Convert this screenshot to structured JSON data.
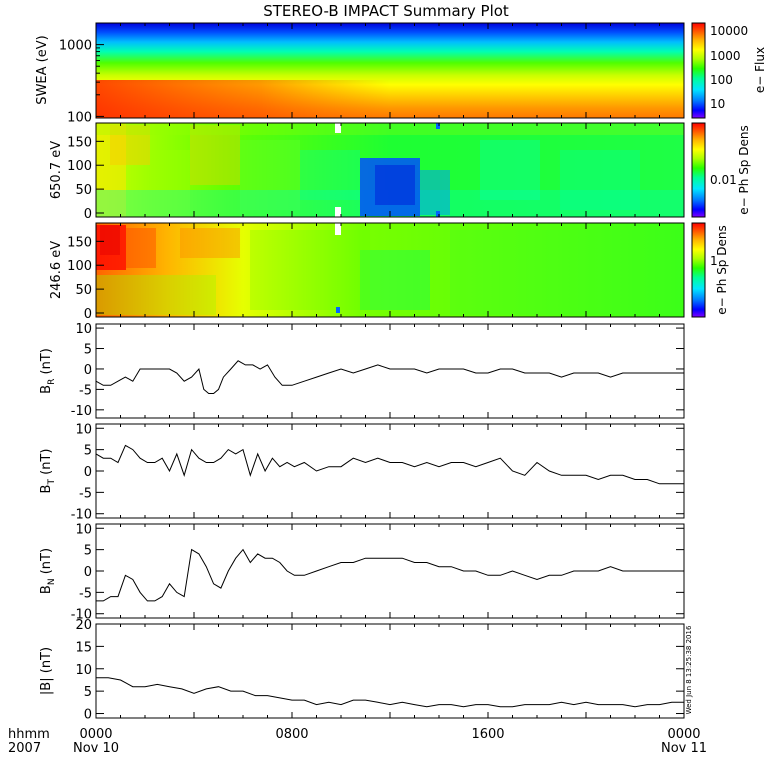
{
  "title": "STEREO-B IMPACT Summary Plot",
  "timestamp": "Wed Jun 8 13:25:38 2016",
  "x_axis": {
    "corner_top": "hhmm",
    "corner_bottom": "2007",
    "ticks": [
      {
        "label": "0000",
        "date": "Nov 10",
        "hour": 0
      },
      {
        "label": "0800",
        "date": "",
        "hour": 8
      },
      {
        "label": "1600",
        "date": "",
        "hour": 16
      },
      {
        "label": "0000",
        "date": "Nov 11",
        "hour": 24
      }
    ],
    "range_hours": [
      0,
      24
    ]
  },
  "colors": {
    "colorscale": [
      "#7f00ff",
      "#0000ff",
      "#0050ff",
      "#00b4ff",
      "#00ffc8",
      "#00ff64",
      "#46ff00",
      "#aaff00",
      "#ffff00",
      "#ffc800",
      "#ff8c00",
      "#ff4600",
      "#ff0000"
    ],
    "line": "#000000"
  },
  "chart_data": [
    {
      "type": "heatmap",
      "panel": "swea",
      "ylabel": "SWEA (eV)",
      "ylim": [
        95,
        2000
      ],
      "log_y": true,
      "yticks": [
        {
          "label": "1000",
          "value": 1000
        },
        {
          "label": "100",
          "value": 100
        }
      ],
      "colorbar_label": "e− Flux",
      "colorbar_ticks": [
        "10000",
        "1000",
        "100",
        "10"
      ],
      "description_bands_eV": [
        1800,
        1000,
        400,
        150
      ]
    },
    {
      "type": "heatmap",
      "panel": "pad_650",
      "ylabel": "650.7 eV",
      "ylim": [
        0,
        180
      ],
      "yticks": [
        {
          "label": "150",
          "value": 150
        },
        {
          "label": "100",
          "value": 100
        },
        {
          "label": "50",
          "value": 50
        },
        {
          "label": "0",
          "value": 0
        }
      ],
      "colorbar_label": "e− Ph Sp Dens",
      "colorbar_ticks": [
        "0.01"
      ]
    },
    {
      "type": "heatmap",
      "panel": "pad_246",
      "ylabel": "246.6 eV",
      "ylim": [
        0,
        180
      ],
      "yticks": [
        {
          "label": "150",
          "value": 150
        },
        {
          "label": "100",
          "value": 100
        },
        {
          "label": "50",
          "value": 50
        },
        {
          "label": "0",
          "value": 0
        }
      ],
      "colorbar_label": "e− Ph Sp Dens",
      "colorbar_ticks": [
        "1"
      ]
    },
    {
      "type": "line",
      "panel": "br",
      "ylabel_main": "B",
      "ylabel_sub": "R",
      "ylabel_unit": "(nT)",
      "ylim": [
        -12,
        11
      ],
      "yticks": [
        10,
        5,
        0,
        -5,
        -10
      ],
      "x": [
        0,
        0.3,
        0.6,
        0.9,
        1.2,
        1.5,
        1.8,
        2.1,
        2.4,
        2.7,
        3.0,
        3.3,
        3.6,
        3.9,
        4.2,
        4.4,
        4.6,
        4.8,
        5.0,
        5.2,
        5.5,
        5.8,
        6.1,
        6.4,
        6.7,
        7.0,
        7.3,
        7.6,
        7.8,
        8.0,
        8.5,
        9.0,
        9.5,
        10.0,
        10.5,
        11.0,
        11.5,
        12.0,
        12.5,
        13.0,
        13.5,
        14.0,
        14.5,
        15.0,
        15.5,
        16.0,
        16.5,
        17.0,
        17.5,
        18.0,
        18.5,
        19.0,
        19.5,
        20.0,
        20.5,
        21.0,
        21.5,
        22.0,
        22.5,
        23.0,
        23.5,
        24.0
      ],
      "y": [
        -3,
        -4,
        -4,
        -3,
        -2,
        -3,
        0,
        0,
        0,
        0,
        0,
        -1,
        -3,
        -2,
        0,
        -5,
        -6,
        -6,
        -5,
        -2,
        0,
        2,
        1,
        1,
        0,
        1,
        -2,
        -4,
        -4,
        -4,
        -3,
        -2,
        -1,
        0,
        -1,
        0,
        1,
        0,
        0,
        0,
        -1,
        0,
        0,
        0,
        -1,
        -1,
        0,
        0,
        -1,
        -1,
        -1,
        -2,
        -1,
        -1,
        -1,
        -2,
        -1,
        -1,
        -1,
        -1,
        -1,
        -1
      ]
    },
    {
      "type": "line",
      "panel": "bt",
      "ylabel_main": "B",
      "ylabel_sub": "T",
      "ylabel_unit": "(nT)",
      "ylim": [
        -11,
        11
      ],
      "yticks": [
        10,
        5,
        0,
        -5,
        -10
      ],
      "x": [
        0,
        0.3,
        0.6,
        0.9,
        1.2,
        1.5,
        1.8,
        2.1,
        2.4,
        2.7,
        3.0,
        3.3,
        3.6,
        3.9,
        4.2,
        4.5,
        4.8,
        5.1,
        5.4,
        5.7,
        6.0,
        6.3,
        6.6,
        6.9,
        7.2,
        7.5,
        7.8,
        8.1,
        8.5,
        9.0,
        9.5,
        10.0,
        10.5,
        11.0,
        11.5,
        12.0,
        12.5,
        13.0,
        13.5,
        14.0,
        14.5,
        15.0,
        15.5,
        16.0,
        16.5,
        17.0,
        17.5,
        18.0,
        18.5,
        19.0,
        19.5,
        20.0,
        20.5,
        21.0,
        21.5,
        22.0,
        22.5,
        23.0,
        23.5,
        24.0
      ],
      "y": [
        4,
        3,
        3,
        2,
        6,
        5,
        3,
        2,
        2,
        3,
        0,
        4,
        -1,
        5,
        3,
        2,
        2,
        3,
        5,
        4,
        5,
        -1,
        4,
        0,
        3,
        1,
        2,
        1,
        2,
        0,
        1,
        1,
        3,
        2,
        3,
        2,
        2,
        1,
        2,
        1,
        2,
        2,
        1,
        2,
        3,
        0,
        -1,
        2,
        0,
        -1,
        -1,
        -1,
        -2,
        -1,
        -1,
        -2,
        -2,
        -3,
        -3,
        -3
      ]
    },
    {
      "type": "line",
      "panel": "bn",
      "ylabel_main": "B",
      "ylabel_sub": "N",
      "ylabel_unit": "(nT)",
      "ylim": [
        -11,
        11
      ],
      "yticks": [
        10,
        5,
        0,
        -5,
        -10
      ],
      "x": [
        0,
        0.3,
        0.6,
        0.9,
        1.2,
        1.5,
        1.8,
        2.1,
        2.4,
        2.7,
        3.0,
        3.3,
        3.6,
        3.9,
        4.2,
        4.5,
        4.8,
        5.1,
        5.4,
        5.7,
        6.0,
        6.3,
        6.6,
        6.9,
        7.2,
        7.5,
        7.8,
        8.1,
        8.5,
        9.0,
        9.5,
        10.0,
        10.5,
        11.0,
        11.5,
        12.0,
        12.5,
        13.0,
        13.5,
        14.0,
        14.5,
        15.0,
        15.5,
        16.0,
        16.5,
        17.0,
        17.5,
        18.0,
        18.5,
        19.0,
        19.5,
        20.0,
        20.5,
        21.0,
        21.5,
        22.0,
        22.5,
        23.0,
        23.5,
        24.0
      ],
      "y": [
        -7,
        -7,
        -6,
        -6,
        -1,
        -2,
        -5,
        -7,
        -7,
        -6,
        -3,
        -5,
        -6,
        5,
        4,
        1,
        -3,
        -4,
        0,
        3,
        5,
        2,
        4,
        3,
        3,
        2,
        0,
        -1,
        -1,
        0,
        1,
        2,
        2,
        3,
        3,
        3,
        3,
        2,
        2,
        1,
        1,
        0,
        0,
        -1,
        -1,
        0,
        -1,
        -2,
        -1,
        -1,
        0,
        0,
        0,
        1,
        0,
        0,
        0,
        0,
        0,
        0
      ]
    },
    {
      "type": "line",
      "panel": "bmag",
      "ylabel_main": "|B|",
      "ylabel_sub": "",
      "ylabel_unit": "(nT)",
      "ylim": [
        -1,
        20
      ],
      "yticks": [
        20,
        15,
        10,
        5,
        0
      ],
      "x": [
        0,
        0.5,
        1.0,
        1.5,
        2.0,
        2.5,
        3.0,
        3.5,
        4.0,
        4.5,
        5.0,
        5.5,
        6.0,
        6.5,
        7.0,
        7.5,
        8.0,
        8.5,
        9.0,
        9.5,
        10.0,
        10.5,
        11.0,
        11.5,
        12.0,
        12.5,
        13.0,
        13.5,
        14.0,
        14.5,
        15.0,
        15.5,
        16.0,
        16.5,
        17.0,
        17.5,
        18.0,
        18.5,
        19.0,
        19.5,
        20.0,
        20.5,
        21.0,
        21.5,
        22.0,
        22.5,
        23.0,
        23.5,
        24.0
      ],
      "y": [
        8,
        8,
        7.5,
        6,
        6,
        6.5,
        6,
        5.5,
        4.5,
        5.5,
        6,
        5,
        5,
        4,
        4,
        3.5,
        3,
        3,
        2,
        2.5,
        2,
        3,
        3,
        2.5,
        2,
        2.5,
        2,
        1.5,
        2,
        2,
        1.5,
        2,
        2,
        1.5,
        1.5,
        2,
        2,
        2,
        2.5,
        2,
        2.5,
        2,
        2,
        2,
        1.5,
        2,
        2,
        2.5,
        2.5
      ]
    }
  ]
}
